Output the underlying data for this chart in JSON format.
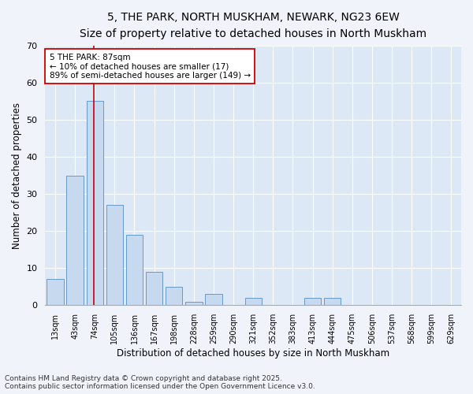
{
  "title1": "5, THE PARK, NORTH MUSKHAM, NEWARK, NG23 6EW",
  "title2": "Size of property relative to detached houses in North Muskham",
  "xlabel": "Distribution of detached houses by size in North Muskham",
  "ylabel": "Number of detached properties",
  "categories": [
    "13sqm",
    "43sqm",
    "74sqm",
    "105sqm",
    "136sqm",
    "167sqm",
    "198sqm",
    "228sqm",
    "259sqm",
    "290sqm",
    "321sqm",
    "352sqm",
    "383sqm",
    "413sqm",
    "444sqm",
    "475sqm",
    "506sqm",
    "537sqm",
    "568sqm",
    "599sqm",
    "629sqm"
  ],
  "values": [
    7,
    35,
    55,
    27,
    19,
    9,
    5,
    1,
    3,
    0,
    2,
    0,
    0,
    2,
    2,
    0,
    0,
    0,
    0,
    0,
    0
  ],
  "bar_color": "#c6d9ee",
  "bar_edge_color": "#6699cc",
  "background_color": "#dce8f5",
  "grid_color": "#ffffff",
  "vline_color": "#cc0000",
  "vline_x": 1.97,
  "annotation_text": "5 THE PARK: 87sqm\n← 10% of detached houses are smaller (17)\n89% of semi-detached houses are larger (149) →",
  "annotation_box_color": "#ffffff",
  "annotation_box_edge": "#cc0000",
  "ylim": [
    0,
    70
  ],
  "yticks": [
    0,
    10,
    20,
    30,
    40,
    50,
    60,
    70
  ],
  "footnote1": "Contains HM Land Registry data © Crown copyright and database right 2025.",
  "footnote2": "Contains public sector information licensed under the Open Government Licence v3.0.",
  "title_fontsize": 10,
  "subtitle_fontsize": 9,
  "annotation_fontsize": 7.5,
  "footnote_fontsize": 6.5,
  "fig_bg": "#f0f4fa"
}
